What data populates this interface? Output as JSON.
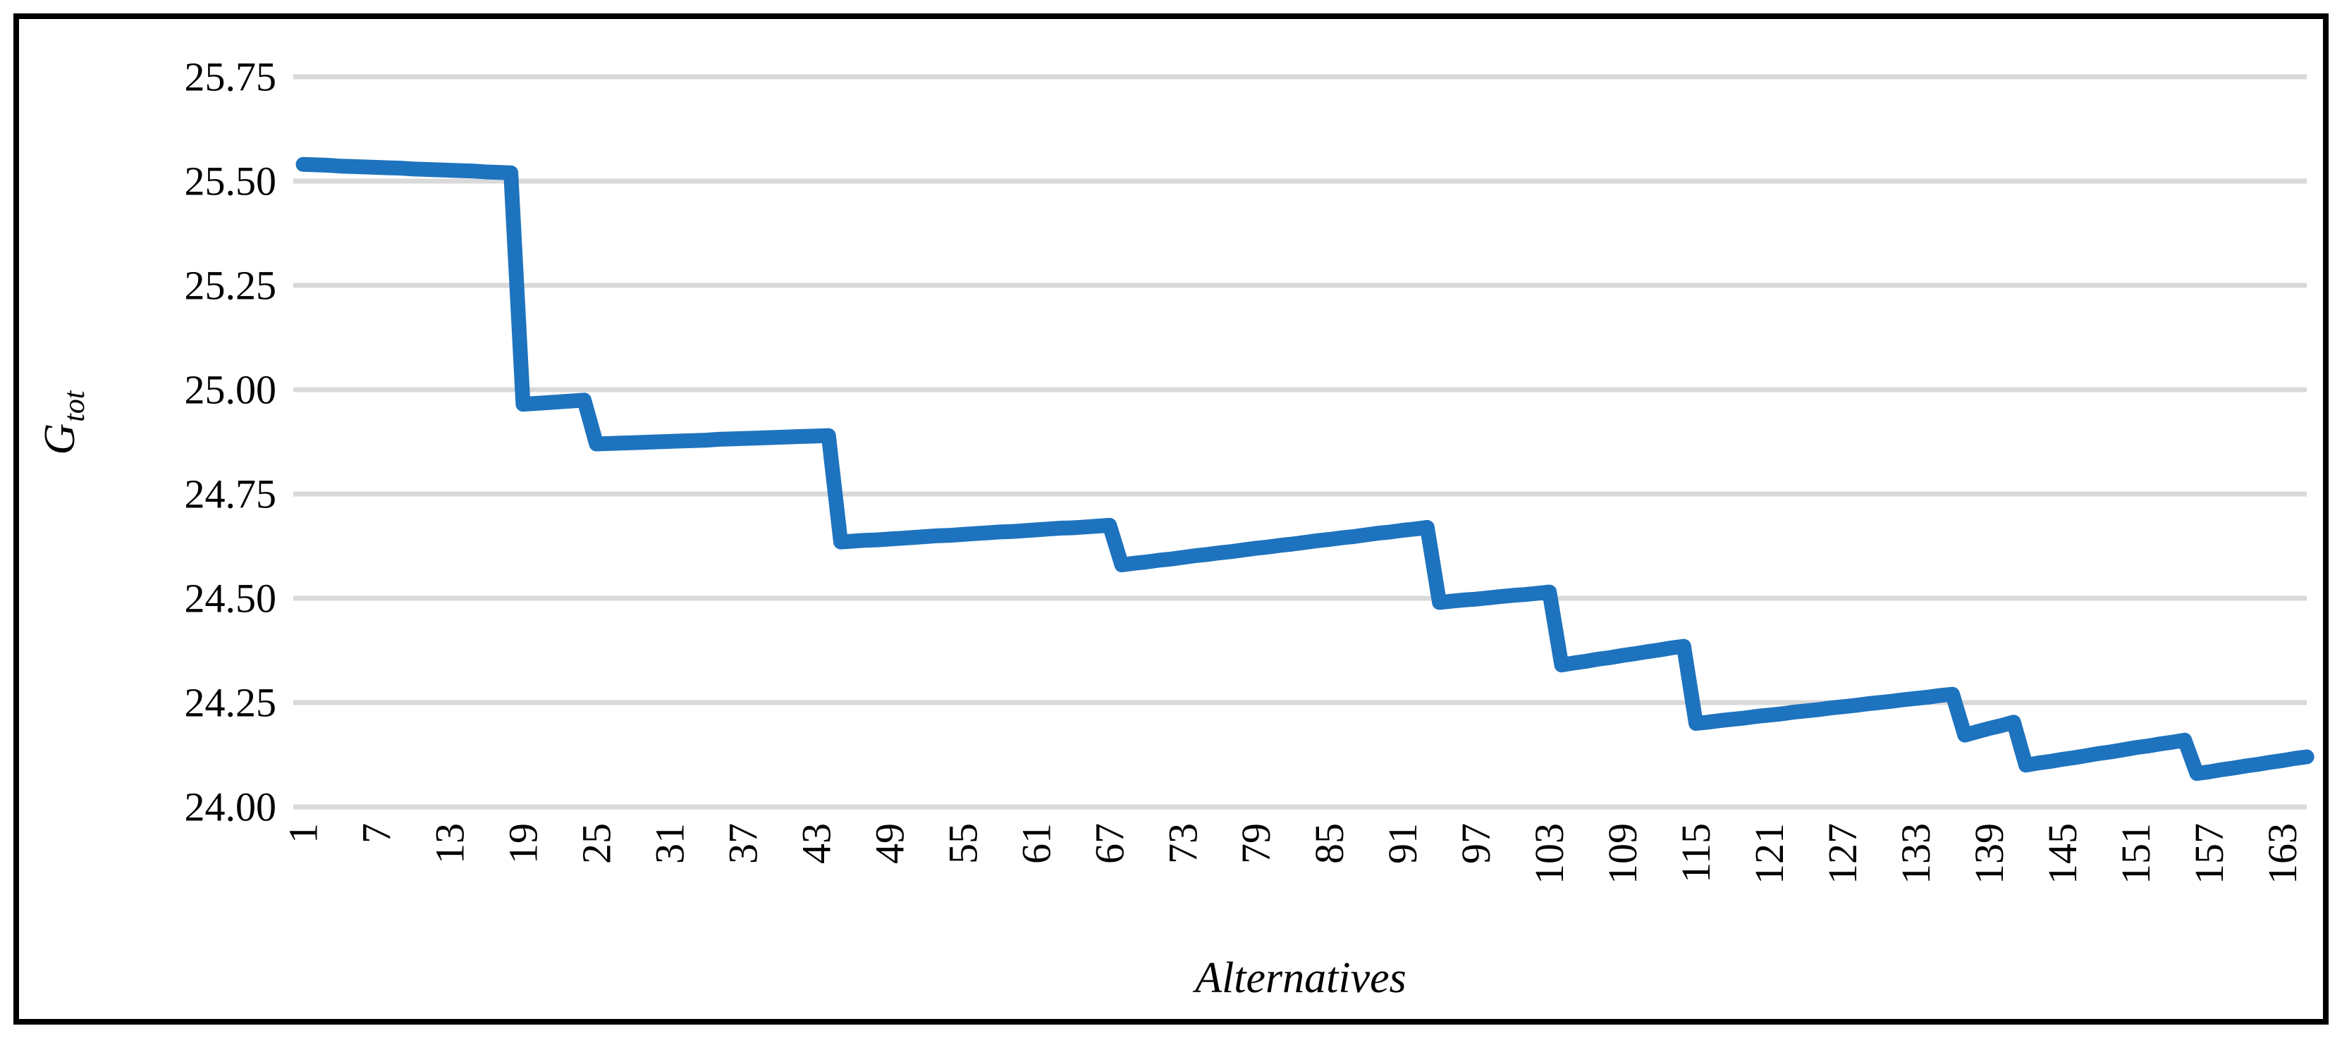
{
  "frame": {
    "background": "#ffffff",
    "border_color": "#000000",
    "gridline_color": "#d9d9d9",
    "series_color": "#1e73be"
  },
  "chart_data": {
    "type": "line",
    "title": "",
    "xlabel": "Alternatives",
    "ylabel_main": "G",
    "ylabel_sub": "tot",
    "legend": "none",
    "grid": "horizontal",
    "xlim": [
      1,
      165
    ],
    "ylim": [
      24.0,
      25.75
    ],
    "x_tick_start": 1,
    "x_tick_step": 6,
    "x_tick_labels": [
      "1",
      "7",
      "13",
      "19",
      "25",
      "31",
      "37",
      "43",
      "49",
      "55",
      "61",
      "67",
      "73",
      "79",
      "85",
      "91",
      "97",
      "103",
      "109",
      "115",
      "121",
      "127",
      "133",
      "139",
      "145",
      "151",
      "157",
      "163"
    ],
    "y_tick_labels": [
      "25.75",
      "25.50",
      "25.25",
      "25.00",
      "24.75",
      "24.50",
      "24.25",
      "24.00"
    ],
    "y_tick_values": [
      25.75,
      25.5,
      25.25,
      25.0,
      24.75,
      24.5,
      24.25,
      24.0
    ],
    "series": [
      {
        "name": "Gtot",
        "color": "#1e73be",
        "x_starts_at": 1,
        "values": [
          25.54,
          25.539,
          25.538,
          25.536,
          25.535,
          25.534,
          25.533,
          25.532,
          25.531,
          25.529,
          25.528,
          25.527,
          25.526,
          25.525,
          25.524,
          25.522,
          25.521,
          25.52,
          24.965,
          24.967,
          24.969,
          24.971,
          24.973,
          24.975,
          24.87,
          24.871,
          24.872,
          24.873,
          24.874,
          24.875,
          24.876,
          24.877,
          24.878,
          24.879,
          24.881,
          24.882,
          24.883,
          24.884,
          24.885,
          24.886,
          24.887,
          24.888,
          24.889,
          24.89,
          24.635,
          24.637,
          24.639,
          24.64,
          24.642,
          24.644,
          24.646,
          24.648,
          24.65,
          24.651,
          24.653,
          24.655,
          24.657,
          24.659,
          24.66,
          24.662,
          24.664,
          24.666,
          24.668,
          24.669,
          24.671,
          24.673,
          24.675,
          24.58,
          24.584,
          24.587,
          24.591,
          24.594,
          24.598,
          24.602,
          24.605,
          24.609,
          24.612,
          24.616,
          24.62,
          24.623,
          24.627,
          24.63,
          24.634,
          24.638,
          24.641,
          24.645,
          24.648,
          24.652,
          24.656,
          24.659,
          24.663,
          24.666,
          24.67,
          24.49,
          24.493,
          24.496,
          24.498,
          24.501,
          24.504,
          24.507,
          24.509,
          24.512,
          24.515,
          24.34,
          24.345,
          24.349,
          24.354,
          24.358,
          24.363,
          24.367,
          24.372,
          24.376,
          24.381,
          24.385,
          24.2,
          24.203,
          24.207,
          24.21,
          24.213,
          24.217,
          24.22,
          24.223,
          24.227,
          24.23,
          24.233,
          24.237,
          24.24,
          24.243,
          24.247,
          24.25,
          24.253,
          24.257,
          24.26,
          24.263,
          24.267,
          24.27,
          24.172,
          24.18,
          24.188,
          24.195,
          24.203,
          24.1,
          24.105,
          24.109,
          24.114,
          24.118,
          24.123,
          24.128,
          24.132,
          24.137,
          24.142,
          24.146,
          24.151,
          24.155,
          24.16,
          24.08,
          24.084,
          24.089,
          24.093,
          24.098,
          24.102,
          24.107,
          24.111,
          24.116,
          24.12
        ]
      }
    ]
  }
}
